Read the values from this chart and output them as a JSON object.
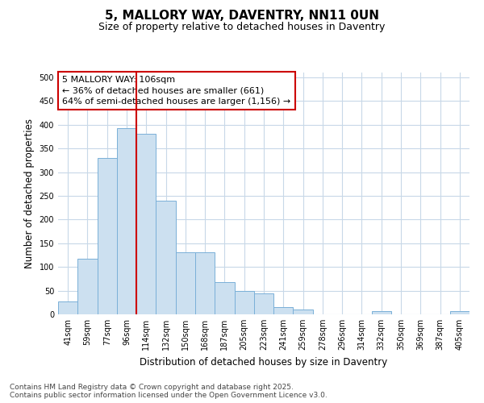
{
  "title": "5, MALLORY WAY, DAVENTRY, NN11 0UN",
  "subtitle": "Size of property relative to detached houses in Daventry",
  "xlabel": "Distribution of detached houses by size in Daventry",
  "ylabel": "Number of detached properties",
  "categories": [
    "41sqm",
    "59sqm",
    "77sqm",
    "96sqm",
    "114sqm",
    "132sqm",
    "150sqm",
    "168sqm",
    "187sqm",
    "205sqm",
    "223sqm",
    "241sqm",
    "259sqm",
    "278sqm",
    "296sqm",
    "314sqm",
    "332sqm",
    "350sqm",
    "369sqm",
    "387sqm",
    "405sqm"
  ],
  "values": [
    27,
    117,
    330,
    393,
    380,
    240,
    131,
    131,
    68,
    50,
    45,
    15,
    10,
    0,
    0,
    0,
    6,
    0,
    0,
    0,
    6
  ],
  "bar_color": "#cce0f0",
  "bar_edge_color": "#7ab0d8",
  "vline_x": 3.5,
  "vline_color": "#cc0000",
  "annotation_text": "5 MALLORY WAY: 106sqm\n← 36% of detached houses are smaller (661)\n64% of semi-detached houses are larger (1,156) →",
  "annotation_box_color": "#ffffff",
  "annotation_box_edge_color": "#cc0000",
  "footnote": "Contains HM Land Registry data © Crown copyright and database right 2025.\nContains public sector information licensed under the Open Government Licence v3.0.",
  "ylim": [
    0,
    510
  ],
  "yticks": [
    0,
    50,
    100,
    150,
    200,
    250,
    300,
    350,
    400,
    450,
    500
  ],
  "background_color": "#ffffff",
  "grid_color": "#c8d8e8",
  "title_fontsize": 11,
  "subtitle_fontsize": 9,
  "axis_label_fontsize": 8.5,
  "tick_fontsize": 7,
  "annotation_fontsize": 8,
  "footnote_fontsize": 6.5
}
